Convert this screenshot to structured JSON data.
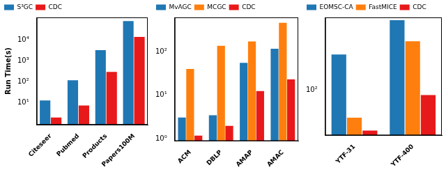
{
  "chart_data": [
    {
      "type": "bar",
      "log": "y",
      "grid": false,
      "legend": "upper left",
      "y_label": "Run Time(s)",
      "categories": [
        "Citeseer",
        "Pubmed",
        "Products",
        "Papers100M"
      ],
      "series": [
        {
          "name": "S³GC",
          "color": "#1f77b4",
          "values": [
            13,
            120,
            3300,
            80000
          ]
        },
        {
          "name": "CDC",
          "color": "#e8191a",
          "values": [
            2,
            7.5,
            300,
            14000
          ]
        }
      ],
      "ylim": [
        0.9,
        120000
      ],
      "yticks": [
        {
          "value": 10,
          "label": "10¹"
        },
        {
          "value": 100,
          "label": "10²"
        },
        {
          "value": 1000,
          "label": "10³"
        },
        {
          "value": 10000,
          "label": "10⁴"
        }
      ]
    },
    {
      "type": "bar",
      "log": "y",
      "grid": false,
      "legend": "upper left",
      "categories": [
        "ACM",
        "DBLP",
        "AMAP",
        "AMAC"
      ],
      "series": [
        {
          "name": "MvAGC",
          "color": "#1f77b4",
          "values": [
            3.1,
            3.5,
            55,
            115
          ]
        },
        {
          "name": "MCGC",
          "color": "#ff7f0e",
          "values": [
            40,
            135,
            170,
            450
          ]
        },
        {
          "name": "CDC",
          "color": "#e8191a",
          "values": [
            1.2,
            2.0,
            12.5,
            23
          ]
        }
      ],
      "ylim": [
        0.9,
        600
      ],
      "yticks": [
        {
          "value": 1,
          "label": "10⁰"
        },
        {
          "value": 10,
          "label": "10¹"
        },
        {
          "value": 100,
          "label": "10²"
        }
      ]
    },
    {
      "type": "bar",
      "log": "y",
      "grid": false,
      "legend": "upper left",
      "categories": [
        "YTF-31",
        "YTF-400"
      ],
      "series": [
        {
          "name": "EOMSC-CA",
          "color": "#1f77b4",
          "values": [
            260,
            650
          ]
        },
        {
          "name": "FastMICE",
          "color": "#ff7f0e",
          "values": [
            48,
            370
          ]
        },
        {
          "name": "CDC",
          "color": "#e8191a",
          "values": [
            34,
            88
          ]
        }
      ],
      "ylim": [
        30,
        700
      ],
      "yticks": [
        {
          "value": 100,
          "label": "10²"
        }
      ]
    }
  ]
}
